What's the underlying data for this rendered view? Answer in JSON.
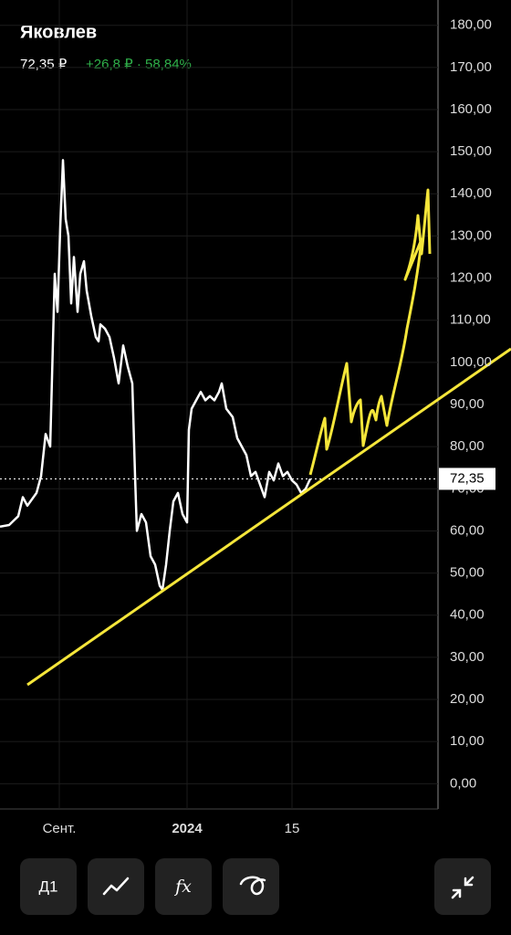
{
  "header": {
    "title": "Яковлев",
    "price": "72,35 ₽",
    "change": "+26,8 ₽ · 58,84%"
  },
  "chart_data": {
    "type": "line",
    "x": [
      0,
      2,
      4,
      5,
      6,
      8,
      9,
      10,
      11,
      12,
      12.6,
      13.2,
      13.8,
      14.4,
      15,
      15.6,
      16.2,
      17,
      17.6,
      18.4,
      19,
      20,
      21,
      21.6,
      22,
      23,
      24,
      25,
      26,
      27,
      28,
      29,
      29.6,
      30,
      31,
      32,
      33,
      34,
      35,
      35.6,
      36.4,
      37.2,
      38,
      39,
      40,
      41,
      41.4,
      42,
      43,
      44,
      45,
      46,
      47,
      48,
      48.6,
      49.6,
      51,
      52,
      53,
      54,
      55,
      56,
      57,
      58,
      59,
      60,
      61,
      62,
      63,
      64,
      65,
      66,
      67,
      68
    ],
    "series": [
      {
        "color": "#ffffff",
        "values": [
          61,
          61.4,
          63.5,
          68,
          66,
          69,
          73,
          83,
          80,
          121,
          112,
          132,
          148,
          134,
          130,
          114,
          125,
          112,
          121,
          124,
          117,
          111,
          106,
          105,
          109,
          108,
          106,
          101,
          95,
          104,
          99,
          95,
          73,
          60,
          64,
          62,
          54,
          52,
          47,
          46,
          52,
          60,
          67,
          69,
          64,
          62,
          84,
          89,
          91,
          93,
          91,
          92,
          91,
          93,
          95,
          89,
          87,
          82,
          80,
          78,
          73,
          74,
          71,
          68,
          74,
          72,
          76,
          73,
          74,
          72,
          71,
          69,
          70,
          72.35
        ]
      }
    ],
    "xlim": [
      0,
      96
    ],
    "xticks": [
      {
        "value": 13,
        "label": "Сент."
      },
      {
        "value": 41,
        "label": "2024"
      },
      {
        "value": 64,
        "label": "15"
      }
    ],
    "ylim": [
      -6,
      186
    ],
    "yticks": [
      {
        "value": 180,
        "label": "180,00"
      },
      {
        "value": 170,
        "label": "170,00"
      },
      {
        "value": 160,
        "label": "160,00"
      },
      {
        "value": 150,
        "label": "150,00"
      },
      {
        "value": 140,
        "label": "140,00"
      },
      {
        "value": 130,
        "label": "130,00"
      },
      {
        "value": 120,
        "label": "120,00"
      },
      {
        "value": 110,
        "label": "110,00"
      },
      {
        "value": 100,
        "label": "100,00"
      },
      {
        "value": 90,
        "label": "90,00"
      },
      {
        "value": 80,
        "label": "80,00"
      },
      {
        "value": 70,
        "label": "70,00"
      },
      {
        "value": 60,
        "label": "60,00"
      },
      {
        "value": 50,
        "label": "50,00"
      },
      {
        "value": 40,
        "label": "40,00"
      },
      {
        "value": 30,
        "label": "30,00"
      },
      {
        "value": 20,
        "label": "20,00"
      },
      {
        "value": 10,
        "label": "10,00"
      },
      {
        "value": 0,
        "label": "0,00"
      }
    ],
    "last_value": {
      "value": 72.35,
      "label": "72,35"
    },
    "grid": true
  },
  "toolbar": {
    "period": "Д1",
    "indicators": "fx"
  }
}
